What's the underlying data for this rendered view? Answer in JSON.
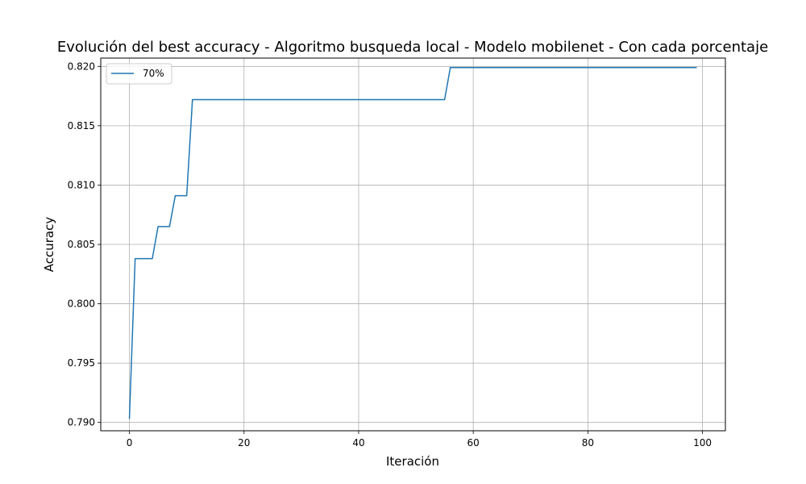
{
  "chart_data": {
    "type": "line",
    "title": "Evolución del best accuracy - Algoritmo busqueda local - Modelo mobilenet - Con cada porcentaje",
    "xlabel": "Iteración",
    "ylabel": "Accuracy",
    "xlim": [
      -5,
      104
    ],
    "ylim": [
      0.7893,
      0.8207
    ],
    "xticks": [
      0,
      20,
      40,
      60,
      80,
      100
    ],
    "yticks": [
      0.79,
      0.795,
      0.8,
      0.805,
      0.81,
      0.815,
      0.82
    ],
    "ytick_labels": [
      "0.790",
      "0.795",
      "0.800",
      "0.805",
      "0.810",
      "0.815",
      "0.820"
    ],
    "grid": true,
    "legend_position": "top-left",
    "series": [
      {
        "name": "70%",
        "color": "#1f77b4",
        "x": [
          0,
          1,
          4,
          5,
          7,
          8,
          10,
          11,
          55,
          56,
          99
        ],
        "y": [
          0.7903,
          0.8038,
          0.8038,
          0.8065,
          0.8065,
          0.8091,
          0.8091,
          0.8172,
          0.8172,
          0.8199,
          0.8199
        ]
      }
    ]
  }
}
